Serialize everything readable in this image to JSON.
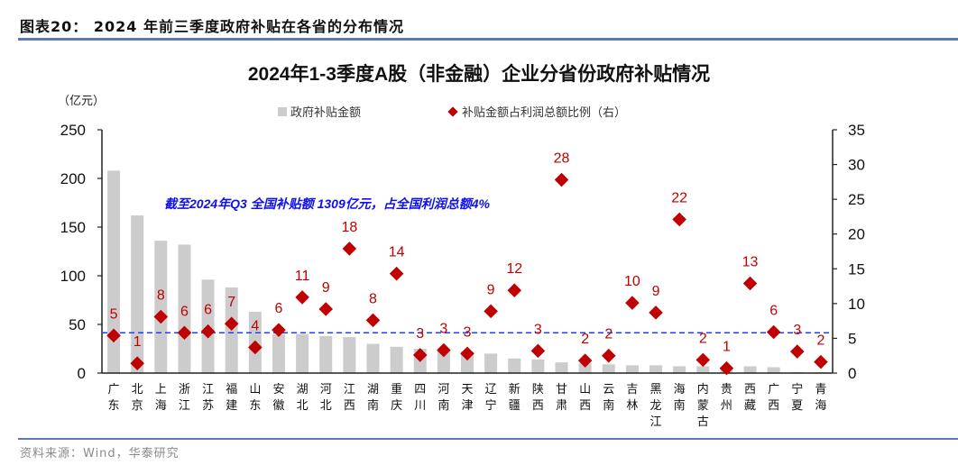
{
  "figure": {
    "label": "图表20：  2024 年前三季度政府补贴在各省的分布情况",
    "source": "资料来源：Wind，华泰研究"
  },
  "chart_data": {
    "type": "bar",
    "title": "2024年1-3季度A股（非金融）企业分省份政府补贴情况",
    "ylabel": "（亿元）",
    "y2label": "",
    "ylim": [
      0,
      250
    ],
    "y2lim": [
      0,
      35
    ],
    "yticks": [
      0,
      50,
      100,
      150,
      200,
      250
    ],
    "y2ticks": [
      0,
      5,
      10,
      15,
      20,
      25,
      30,
      35
    ],
    "grid": false,
    "legend_position": "top",
    "legend": [
      "政府补贴金额",
      "补贴金额占利润总额比例（右）"
    ],
    "annotation": "截至2024年Q3 全国补贴额 1309亿元，占全国利润总额4%",
    "reference_line": {
      "axis": "y2",
      "value": 5.8,
      "style": "dashed",
      "color": "#1f3fff"
    },
    "categories": [
      "广东",
      "北京",
      "上海",
      "浙江",
      "江苏",
      "福建",
      "山东",
      "安徽",
      "湖北",
      "河北",
      "江西",
      "湖南",
      "重庆",
      "四川",
      "河南",
      "天津",
      "辽宁",
      "新疆",
      "陕西",
      "甘肃",
      "山西",
      "云南",
      "吉林",
      "黑龙江",
      "海南",
      "内蒙古",
      "贵州",
      "西藏",
      "广西",
      "宁夏",
      "青海"
    ],
    "series": [
      {
        "name": "政府补贴金额",
        "type": "bar",
        "axis": "y",
        "color": "#cccccc",
        "values": [
          208,
          162,
          136,
          132,
          96,
          88,
          63,
          40,
          40,
          38,
          37,
          30,
          27,
          25,
          23,
          22,
          20,
          15,
          14,
          11,
          10,
          9,
          8,
          8,
          7,
          7,
          6,
          7,
          6,
          1,
          1
        ]
      },
      {
        "name": "补贴金额占利润总额比例（右）",
        "type": "scatter",
        "axis": "y2",
        "color": "#c00000",
        "marker": "diamond",
        "values": [
          5.4,
          1.4,
          8.1,
          5.8,
          6.0,
          7.1,
          3.7,
          6.2,
          10.9,
          9.2,
          17.9,
          7.6,
          14.3,
          2.6,
          3.3,
          2.8,
          8.9,
          11.9,
          3.2,
          27.8,
          1.8,
          2.5,
          10.1,
          8.7,
          22.1,
          1.9,
          0.7,
          12.9,
          5.9,
          3.1,
          1.6
        ],
        "labels": [
          "5",
          "1",
          "8",
          "6",
          "6",
          "7",
          "4",
          "6",
          "11",
          "9",
          "18",
          "8",
          "14",
          "3",
          "3",
          "3",
          "9",
          "12",
          "3",
          "28",
          "2",
          "2",
          "10",
          "9",
          "22",
          "2",
          "1",
          "13",
          "6",
          "3",
          "2"
        ]
      }
    ]
  }
}
